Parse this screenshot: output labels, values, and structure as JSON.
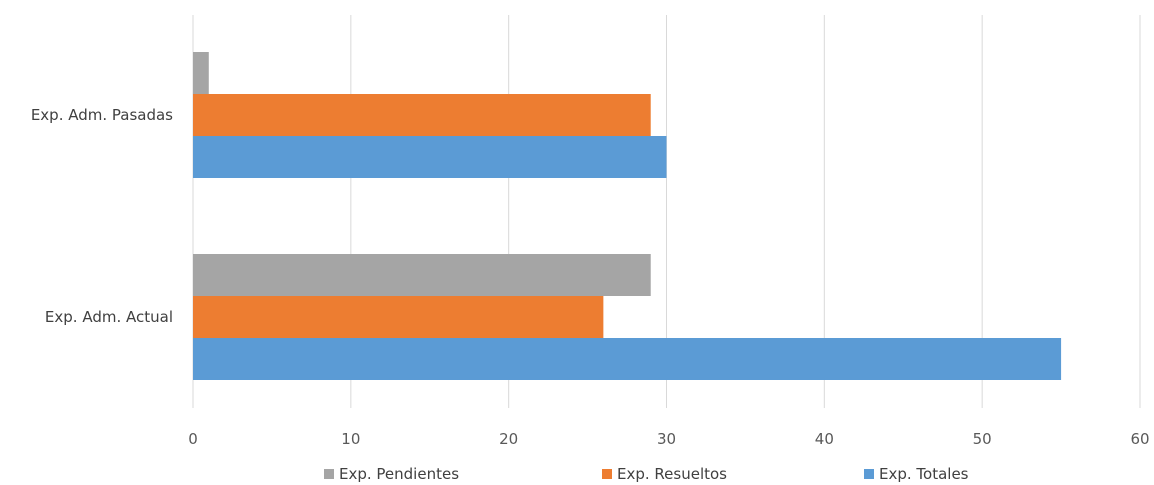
{
  "chart_data": {
    "type": "bar",
    "orientation": "horizontal",
    "categories": [
      "Exp. Adm. Pasadas",
      "Exp. Adm. Actual"
    ],
    "series": [
      {
        "name": "Exp. Pendientes",
        "values": [
          1,
          29
        ],
        "color": "#a5a5a5"
      },
      {
        "name": "Exp. Resueltos",
        "values": [
          29,
          26
        ],
        "color": "#ed7d31"
      },
      {
        "name": "Exp. Totales",
        "values": [
          30,
          55
        ],
        "color": "#5b9bd5"
      }
    ],
    "xlim": [
      0,
      60
    ],
    "xticks": [
      0,
      10,
      20,
      30,
      40,
      50,
      60
    ],
    "grid": true,
    "legend_position": "bottom"
  }
}
